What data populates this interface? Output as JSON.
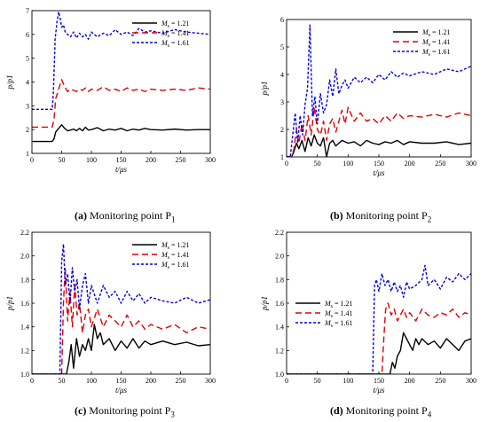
{
  "chart_data": [
    {
      "type": "line",
      "panel": "(a)",
      "caption_label": "(a)",
      "caption_text": "Monitoring point P",
      "caption_sub": "1",
      "xlabel": "t/μs",
      "ylabel": "p/p1",
      "xlim": [
        0,
        300
      ],
      "ylim": [
        1,
        7
      ],
      "xticks": [
        0,
        50,
        100,
        150,
        200,
        250,
        300
      ],
      "yticks": [
        1,
        2,
        3,
        4,
        5,
        6,
        7
      ],
      "ytick_decimals": 0,
      "legend": "top-right",
      "series": [
        {
          "name": "Ms = 1.21",
          "name_main": "M",
          "name_sub": "s",
          "name_rest": " = 1.21",
          "color": "#000000",
          "dash": "solid",
          "x": [
            0,
            34,
            37,
            40,
            45,
            50,
            55,
            60,
            65,
            70,
            75,
            80,
            85,
            90,
            95,
            100,
            110,
            120,
            130,
            140,
            150,
            160,
            170,
            180,
            190,
            200,
            220,
            240,
            260,
            280,
            300
          ],
          "y": [
            1.5,
            1.5,
            1.6,
            1.9,
            2.05,
            2.2,
            2.05,
            1.95,
            1.98,
            2.02,
            1.95,
            2.05,
            1.95,
            2.1,
            1.98,
            2.0,
            2.08,
            1.95,
            2.02,
            1.98,
            2.05,
            1.95,
            2.02,
            1.98,
            2.05,
            2.0,
            1.98,
            2.02,
            1.98,
            2.0,
            2.0
          ]
        },
        {
          "name": "Ms = 1.41",
          "name_main": "M",
          "name_sub": "s",
          "name_rest": " = 1.41",
          "color": "#e00000",
          "dash": "long",
          "x": [
            0,
            34,
            37,
            40,
            45,
            50,
            55,
            60,
            65,
            70,
            75,
            80,
            85,
            90,
            95,
            100,
            110,
            120,
            130,
            140,
            150,
            160,
            170,
            180,
            190,
            200,
            220,
            240,
            260,
            280,
            300
          ],
          "y": [
            2.1,
            2.1,
            2.4,
            3.3,
            3.7,
            4.1,
            3.8,
            3.6,
            3.7,
            3.65,
            3.6,
            3.7,
            3.65,
            3.75,
            3.6,
            3.7,
            3.65,
            3.8,
            3.65,
            3.7,
            3.6,
            3.75,
            3.65,
            3.7,
            3.6,
            3.7,
            3.65,
            3.7,
            3.65,
            3.75,
            3.7
          ]
        },
        {
          "name": "Ms = 1.61",
          "name_main": "M",
          "name_sub": "s",
          "name_rest": " = 1.61",
          "color": "#0000e0",
          "dash": "short",
          "x": [
            0,
            34,
            36,
            39,
            42,
            45,
            48,
            50,
            53,
            56,
            60,
            65,
            70,
            75,
            80,
            85,
            90,
            95,
            100,
            110,
            120,
            130,
            140,
            150,
            160,
            170,
            180,
            190,
            200,
            220,
            240,
            260,
            280,
            300
          ],
          "y": [
            2.85,
            2.85,
            3.5,
            5.8,
            6.5,
            6.95,
            6.6,
            6.3,
            6.4,
            6.1,
            6.0,
            5.9,
            6.1,
            5.85,
            6.05,
            5.9,
            6.0,
            5.8,
            6.1,
            5.9,
            6.05,
            5.95,
            6.2,
            6.0,
            6.1,
            5.95,
            6.25,
            6.1,
            6.15,
            6.05,
            6.2,
            6.1,
            6.05,
            6.0
          ]
        }
      ]
    },
    {
      "type": "line",
      "panel": "(b)",
      "caption_label": "(b)",
      "caption_text": "Monitoring point P",
      "caption_sub": "2",
      "xlabel": "t/μs",
      "ylabel": "p/p1",
      "xlim": [
        0,
        300
      ],
      "ylim": [
        1,
        6
      ],
      "xticks": [
        0,
        50,
        100,
        150,
        200,
        250,
        300
      ],
      "yticks": [
        1,
        2,
        3,
        4,
        5,
        6
      ],
      "ytick_decimals": 0,
      "legend": "top-right",
      "series": [
        {
          "name": "Ms = 1.21",
          "name_main": "M",
          "name_sub": "s",
          "name_rest": " = 1.21",
          "color": "#000000",
          "dash": "solid",
          "x": [
            0,
            8,
            12,
            16,
            20,
            25,
            30,
            35,
            40,
            45,
            50,
            55,
            60,
            65,
            70,
            75,
            80,
            90,
            100,
            110,
            120,
            130,
            140,
            150,
            160,
            170,
            180,
            190,
            200,
            220,
            240,
            260,
            280,
            300
          ],
          "y": [
            1.0,
            1.0,
            1.2,
            1.5,
            1.3,
            1.6,
            1.2,
            1.7,
            1.4,
            1.8,
            1.5,
            1.4,
            1.7,
            1.0,
            1.5,
            1.6,
            1.4,
            1.6,
            1.5,
            1.55,
            1.4,
            1.6,
            1.5,
            1.45,
            1.55,
            1.5,
            1.6,
            1.45,
            1.55,
            1.5,
            1.5,
            1.55,
            1.45,
            1.5
          ]
        },
        {
          "name": "Ms = 1.41",
          "name_main": "M",
          "name_sub": "s",
          "name_rest": " = 1.41",
          "color": "#e00000",
          "dash": "long",
          "x": [
            0,
            8,
            12,
            16,
            20,
            25,
            30,
            35,
            40,
            45,
            50,
            55,
            60,
            65,
            70,
            75,
            80,
            90,
            95,
            100,
            110,
            120,
            130,
            140,
            150,
            160,
            170,
            180,
            190,
            200,
            220,
            240,
            260,
            280,
            300
          ],
          "y": [
            1.0,
            1.0,
            1.3,
            2.0,
            1.5,
            2.2,
            1.6,
            2.5,
            1.8,
            2.8,
            2.0,
            1.8,
            2.3,
            1.6,
            2.2,
            2.4,
            1.9,
            2.7,
            2.2,
            2.8,
            2.3,
            2.6,
            2.3,
            2.4,
            2.2,
            2.5,
            2.3,
            2.6,
            2.4,
            2.5,
            2.45,
            2.55,
            2.45,
            2.6,
            2.5
          ]
        },
        {
          "name": "Ms = 1.61",
          "name_main": "M",
          "name_sub": "s",
          "name_rest": " = 1.61",
          "color": "#0000e0",
          "dash": "short",
          "x": [
            0,
            6,
            10,
            14,
            18,
            22,
            26,
            30,
            34,
            38,
            42,
            46,
            50,
            55,
            60,
            65,
            70,
            75,
            80,
            85,
            90,
            95,
            100,
            110,
            120,
            130,
            140,
            150,
            160,
            170,
            180,
            190,
            200,
            220,
            240,
            260,
            280,
            300
          ],
          "y": [
            1.0,
            1.0,
            1.8,
            2.6,
            1.5,
            2.5,
            1.8,
            2.9,
            3.5,
            5.8,
            2.5,
            3.2,
            2.2,
            3.3,
            2.6,
            2.9,
            3.8,
            3.2,
            4.2,
            3.3,
            3.6,
            3.8,
            3.5,
            3.9,
            3.7,
            3.9,
            3.7,
            4.0,
            3.8,
            4.1,
            3.9,
            4.05,
            3.95,
            4.1,
            4.0,
            4.2,
            4.1,
            4.3
          ]
        }
      ]
    },
    {
      "type": "line",
      "panel": "(c)",
      "caption_label": "(c)",
      "caption_text": "Monitoring point P",
      "caption_sub": "3",
      "xlabel": "t/μs",
      "ylabel": "p/p1",
      "xlim": [
        0,
        300
      ],
      "ylim": [
        1.0,
        2.2
      ],
      "xticks": [
        0,
        50,
        100,
        150,
        200,
        250,
        300
      ],
      "yticks": [
        1.0,
        1.2,
        1.4,
        1.6,
        1.8,
        2.0,
        2.2
      ],
      "ytick_decimals": 1,
      "legend": "top-right",
      "series": [
        {
          "name": "Ms = 1.21",
          "name_main": "M",
          "name_sub": "s",
          "name_rest": " = 1.21",
          "color": "#000000",
          "dash": "solid",
          "x": [
            0,
            58,
            62,
            66,
            70,
            75,
            80,
            85,
            90,
            95,
            100,
            105,
            110,
            115,
            120,
            130,
            140,
            150,
            160,
            170,
            180,
            190,
            200,
            220,
            240,
            260,
            280,
            300
          ],
          "y": [
            1.0,
            1.0,
            1.1,
            1.25,
            1.05,
            1.3,
            1.15,
            1.25,
            1.2,
            1.3,
            1.2,
            1.42,
            1.3,
            1.35,
            1.25,
            1.3,
            1.2,
            1.28,
            1.22,
            1.3,
            1.22,
            1.28,
            1.25,
            1.28,
            1.25,
            1.27,
            1.24,
            1.25
          ]
        },
        {
          "name": "Ms = 1.41",
          "name_main": "M",
          "name_sub": "s",
          "name_rest": " = 1.41",
          "color": "#e00000",
          "dash": "long",
          "x": [
            0,
            50,
            53,
            56,
            60,
            64,
            68,
            72,
            76,
            80,
            85,
            90,
            95,
            100,
            110,
            120,
            130,
            140,
            150,
            160,
            170,
            180,
            190,
            200,
            220,
            240,
            260,
            280,
            300
          ],
          "y": [
            1.0,
            1.0,
            1.6,
            1.9,
            1.45,
            1.7,
            1.4,
            1.75,
            1.5,
            1.6,
            1.35,
            1.5,
            1.55,
            1.4,
            1.55,
            1.4,
            1.5,
            1.45,
            1.4,
            1.5,
            1.4,
            1.45,
            1.38,
            1.42,
            1.38,
            1.42,
            1.35,
            1.4,
            1.38
          ]
        },
        {
          "name": "Ms = 1.61",
          "name_main": "M",
          "name_sub": "s",
          "name_rest": " = 1.61",
          "color": "#0000e0",
          "dash": "short",
          "x": [
            0,
            47,
            50,
            53,
            56,
            60,
            64,
            68,
            72,
            76,
            80,
            85,
            90,
            95,
            100,
            110,
            120,
            130,
            140,
            150,
            160,
            170,
            180,
            190,
            200,
            220,
            240,
            260,
            280,
            300
          ],
          "y": [
            1.0,
            1.0,
            1.95,
            2.1,
            1.75,
            1.85,
            1.6,
            1.9,
            1.7,
            1.8,
            1.55,
            1.75,
            1.85,
            1.6,
            1.75,
            1.6,
            1.75,
            1.65,
            1.7,
            1.6,
            1.7,
            1.62,
            1.68,
            1.6,
            1.65,
            1.62,
            1.6,
            1.65,
            1.6,
            1.63
          ]
        }
      ]
    },
    {
      "type": "line",
      "panel": "(d)",
      "caption_label": "(d)",
      "caption_text": "Monitoring point P",
      "caption_sub": "4",
      "xlabel": "t/μs",
      "ylabel": "p/p1",
      "xlim": [
        0,
        300
      ],
      "ylim": [
        1.0,
        2.2
      ],
      "xticks": [
        0,
        50,
        100,
        150,
        200,
        250,
        300
      ],
      "yticks": [
        1.0,
        1.2,
        1.4,
        1.6,
        1.8,
        2.0,
        2.2
      ],
      "ytick_decimals": 1,
      "legend": "center-left",
      "series": [
        {
          "name": "Ms = 1.21",
          "name_main": "M",
          "name_sub": "s",
          "name_rest": " = 1.21",
          "color": "#000000",
          "dash": "solid",
          "x": [
            0,
            168,
            172,
            176,
            180,
            185,
            190,
            195,
            200,
            205,
            210,
            215,
            220,
            230,
            240,
            250,
            260,
            270,
            280,
            290,
            300
          ],
          "y": [
            1.0,
            1.0,
            1.1,
            1.05,
            1.15,
            1.2,
            1.35,
            1.3,
            1.25,
            1.2,
            1.3,
            1.25,
            1.3,
            1.25,
            1.28,
            1.22,
            1.3,
            1.25,
            1.2,
            1.28,
            1.3
          ]
        },
        {
          "name": "Ms = 1.41",
          "name_main": "M",
          "name_sub": "s",
          "name_rest": " = 1.41",
          "color": "#e00000",
          "dash": "long",
          "x": [
            0,
            155,
            158,
            161,
            165,
            170,
            175,
            180,
            185,
            190,
            195,
            200,
            210,
            220,
            230,
            240,
            250,
            260,
            270,
            280,
            290,
            300
          ],
          "y": [
            1.0,
            1.0,
            1.3,
            1.55,
            1.6,
            1.5,
            1.55,
            1.45,
            1.5,
            1.55,
            1.48,
            1.52,
            1.45,
            1.55,
            1.5,
            1.48,
            1.52,
            1.5,
            1.55,
            1.48,
            1.52,
            1.5
          ]
        },
        {
          "name": "Ms = 1.61",
          "name_main": "M",
          "name_sub": "s",
          "name_rest": " = 1.61",
          "color": "#0000e0",
          "dash": "short",
          "x": [
            0,
            140,
            143,
            146,
            150,
            155,
            160,
            165,
            170,
            175,
            180,
            185,
            190,
            195,
            200,
            210,
            220,
            225,
            230,
            240,
            250,
            260,
            270,
            280,
            290,
            300
          ],
          "y": [
            1.0,
            1.0,
            1.75,
            1.8,
            1.7,
            1.85,
            1.75,
            1.8,
            1.7,
            1.78,
            1.7,
            1.75,
            1.65,
            1.78,
            1.72,
            1.75,
            1.8,
            1.92,
            1.75,
            1.8,
            1.72,
            1.82,
            1.78,
            1.85,
            1.8,
            1.85
          ]
        }
      ]
    }
  ]
}
